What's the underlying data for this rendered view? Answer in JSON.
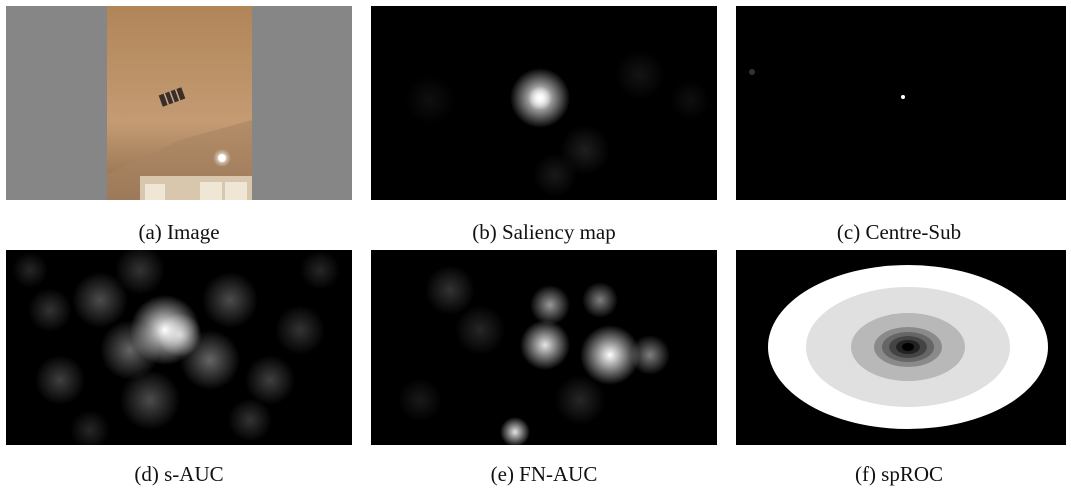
{
  "panels": [
    {
      "caption": "(a) Image"
    },
    {
      "caption": "(b) Saliency map"
    },
    {
      "caption": "(c) Centre-Sub"
    },
    {
      "caption": "(d) s-AUC"
    },
    {
      "caption": "(e) FN-AUC"
    },
    {
      "caption": "(f) spROC"
    }
  ]
}
